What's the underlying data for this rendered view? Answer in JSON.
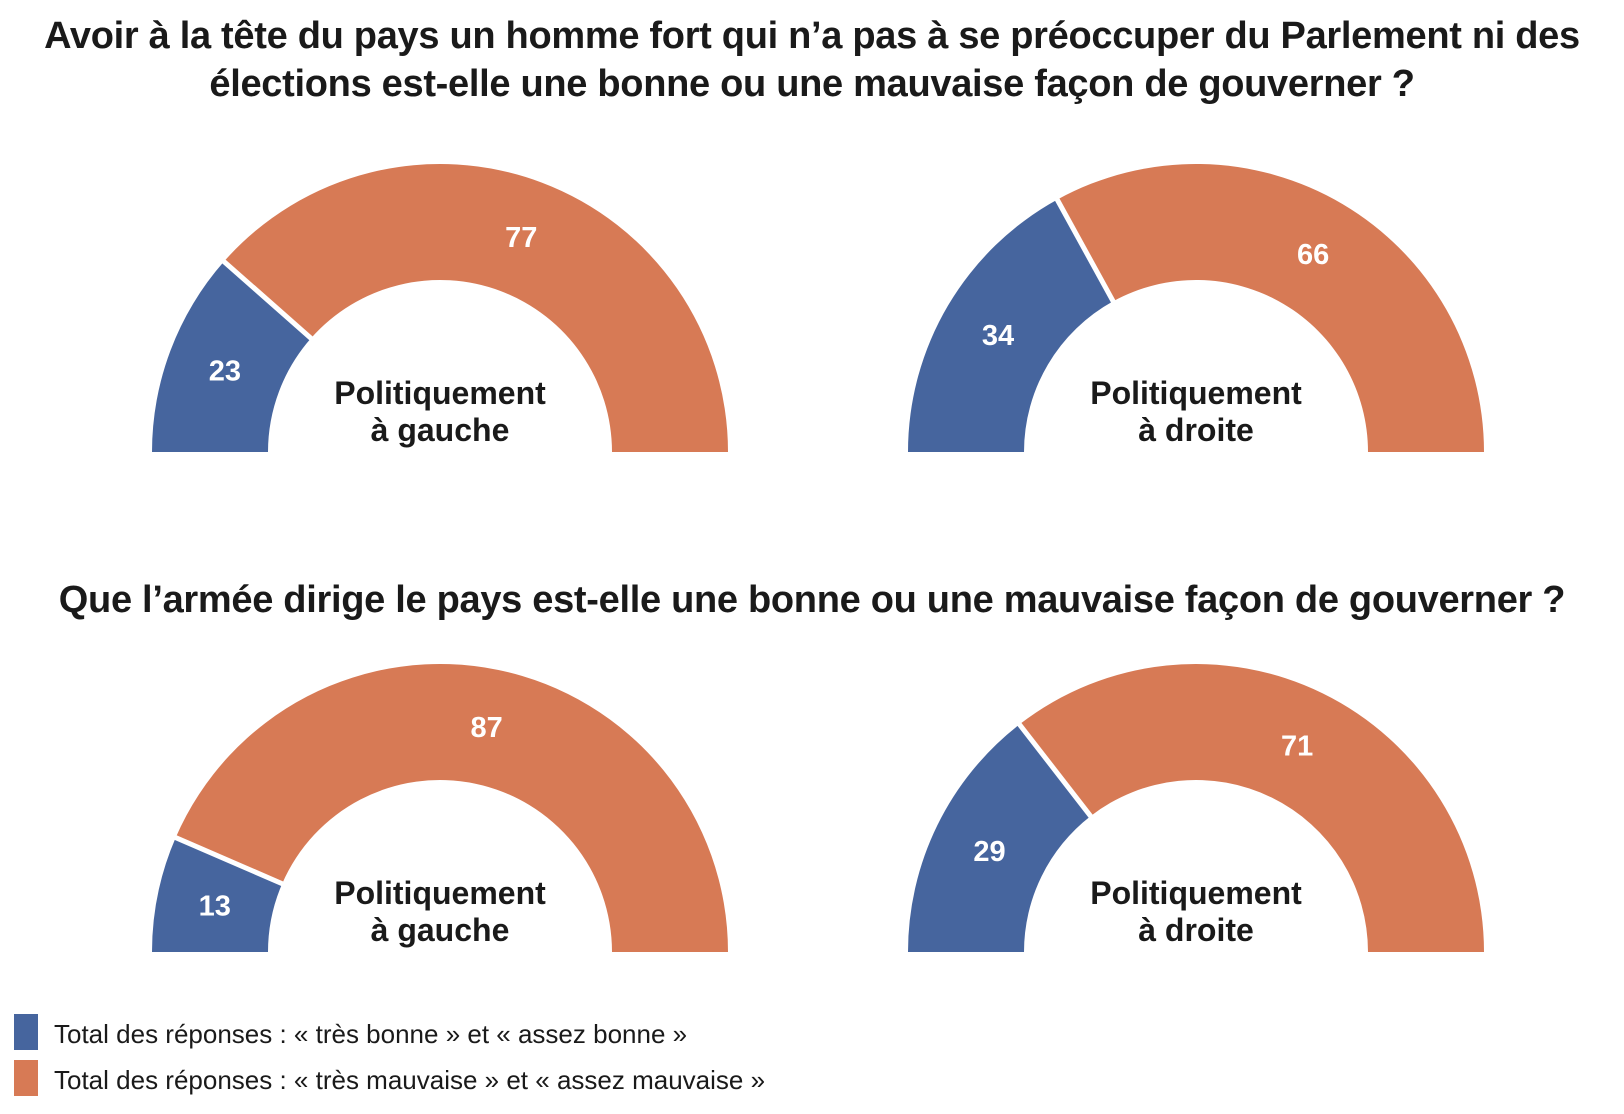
{
  "colors": {
    "good": "#46659e",
    "bad": "#d77a55"
  },
  "legend": [
    {
      "key": "good",
      "label": "Total des réponses : «  très bonne » et « assez bonne »"
    },
    {
      "key": "bad",
      "label": "Total des réponses : «  très mauvaise » et « assez mauvaise »"
    }
  ],
  "questions": [
    {
      "title": "Avoir à la tête du pays un homme fort qui n’a pas à se préoccuper du Parlement ni des élections est-elle une bonne ou une mauvaise façon de gouverner ?"
    },
    {
      "title": "Que l’armée dirige le pays est-elle une bonne ou une mauvaise façon de gouverner ?"
    }
  ],
  "chart_data": [
    {
      "type": "pie",
      "variant": "half-donut",
      "question": 0,
      "group_line1": "Politiquement",
      "group_line2": "à gauche",
      "categories": [
        "Très bonne + assez bonne",
        "Très mauvaise + assez mauvaise"
      ],
      "values": [
        23,
        77
      ]
    },
    {
      "type": "pie",
      "variant": "half-donut",
      "question": 0,
      "group_line1": "Politiquement",
      "group_line2": "à droite",
      "categories": [
        "Très bonne + assez bonne",
        "Très mauvaise + assez mauvaise"
      ],
      "values": [
        34,
        66
      ]
    },
    {
      "type": "pie",
      "variant": "half-donut",
      "question": 1,
      "group_line1": "Politiquement",
      "group_line2": "à gauche",
      "categories": [
        "Très bonne + assez bonne",
        "Très mauvaise + assez mauvaise"
      ],
      "values": [
        13,
        87
      ]
    },
    {
      "type": "pie",
      "variant": "half-donut",
      "question": 1,
      "group_line1": "Politiquement",
      "group_line2": "à droite",
      "categories": [
        "Très bonne + assez bonne",
        "Très mauvaise + assez mauvaise"
      ],
      "values": [
        29,
        71
      ]
    }
  ]
}
